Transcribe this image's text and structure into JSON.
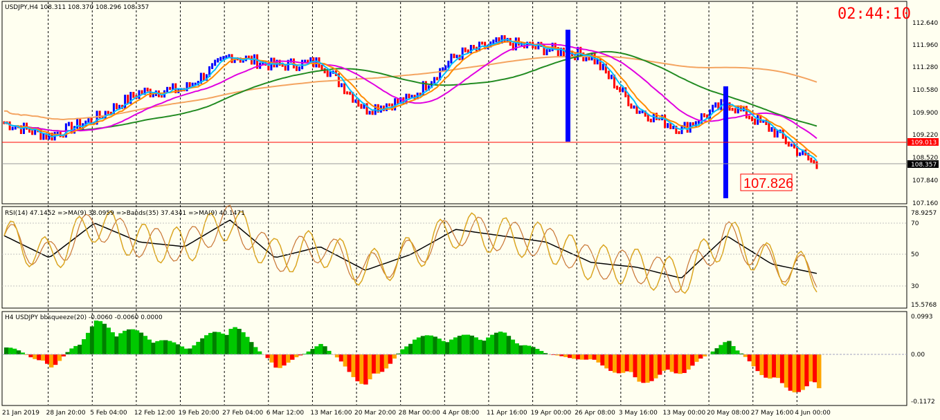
{
  "header": {
    "symbol_line": "USDJPY,H4  108.311 108.370 108.296 108.357",
    "clock": "02:44:10",
    "price_label": "107.826"
  },
  "colors": {
    "background": "#fffff0",
    "bull_candle": "#0000ff",
    "bear_candle": "#ff0000",
    "ema_fast": "#00bfff",
    "ema_mid": "#4aa0ff",
    "ma_orange": "#ff8c00",
    "ma_green": "#228b22",
    "ma_magenta": "#e000e0",
    "ma_tan": "#f4a460",
    "level_line": "#ff0000",
    "rsi_line": "#daa520",
    "rsi_ma": "#000000",
    "rsi_ma2": "#c87533",
    "squeeze_up": "#00c800",
    "squeeze_up_dark": "#008000",
    "squeeze_down": "#ff0000",
    "squeeze_down2": "#ffa500"
  },
  "main_panel": {
    "price_axis": [
      "112.640",
      "111.960",
      "111.280",
      "110.580",
      "109.900",
      "109.220",
      "108.520",
      "107.840",
      "107.160"
    ],
    "level_line_label": "109.013",
    "current_price_label": "108.357",
    "ylim": [
      107.16,
      112.64
    ]
  },
  "rsi_panel": {
    "title": "RSI(14) 47.1452  =>MA(9) 38.0959  =>Bands(35) 37.4341  =>MA(9) 40.1471",
    "axis": [
      "78.9257",
      "70",
      "50",
      "30",
      "15.5768"
    ]
  },
  "squeeze_panel": {
    "title": "H4 USDJPY bbsqueeze(20) -0.0060 -0.0060 0.0000",
    "axis": [
      "0.0993",
      "0.00",
      "-0.1172"
    ]
  },
  "time_axis": [
    "21 Jan 2019",
    "28 Jan 20:00",
    "5 Feb 04:00",
    "12 Feb 12:00",
    "19 Feb 20:00",
    "27 Feb 04:00",
    "6 Mar 12:00",
    "13 Mar 16:00",
    "20 Mar 20:00",
    "28 Mar 00:00",
    "4 Apr 08:00",
    "11 Apr 16:00",
    "19 Apr 00:00",
    "26 Apr 08:00",
    "3 May 16:00",
    "13 May 00:00",
    "20 May 08:00",
    "27 May 16:00",
    "4 Jun 00:00"
  ],
  "chart_data": {
    "type": "line",
    "x": [
      "21 Jan 2019",
      "28 Jan 20:00",
      "5 Feb 04:00",
      "12 Feb 12:00",
      "19 Feb 20:00",
      "27 Feb 04:00",
      "6 Mar 12:00",
      "13 Mar 16:00",
      "20 Mar 20:00",
      "28 Mar 00:00",
      "4 Apr 08:00",
      "11 Apr 16:00",
      "19 Apr 00:00",
      "26 Apr 08:00",
      "3 May 16:00",
      "13 May 00:00",
      "20 May 08:00",
      "27 May 16:00",
      "4 Jun 00:00"
    ],
    "series": [
      {
        "values": [
          109.6,
          109.2,
          109.7,
          110.5,
          110.6,
          111.6,
          111.3,
          111.4,
          110.0,
          110.3,
          111.6,
          112.0,
          111.8,
          111.6,
          110.0,
          109.4,
          110.2,
          109.4,
          108.3
        ]
      }
    ],
    "rsi": [
      62,
      48,
      70,
      58,
      55,
      72,
      48,
      55,
      40,
      50,
      66,
      62,
      58,
      45,
      42,
      35,
      62,
      44,
      38
    ],
    "squeeze": [
      0.03,
      -0.04,
      0.09,
      0.06,
      0.02,
      0.09,
      -0.04,
      0.03,
      -0.1,
      0.05,
      0.05,
      0.06,
      0.0,
      -0.02,
      -0.08,
      -0.05,
      0.04,
      -0.09,
      -0.11
    ],
    "ylim": [
      107.16,
      112.64
    ]
  }
}
